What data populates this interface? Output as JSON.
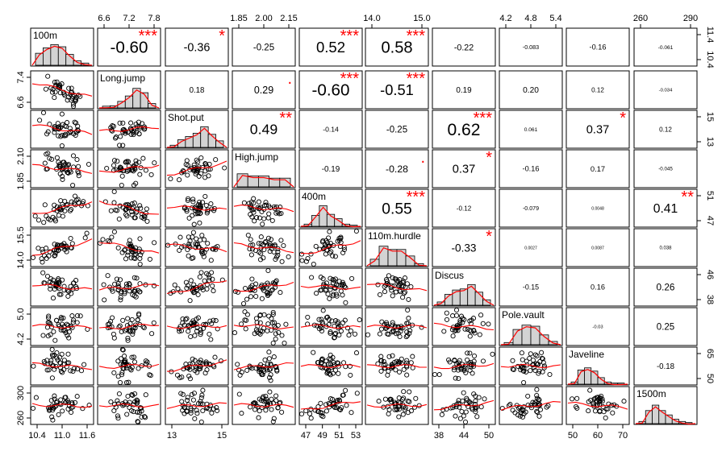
{
  "chart_data": {
    "type": "scatter-matrix-correlation",
    "variables": [
      "100m",
      "Long.jump",
      "Shot.put",
      "High.jump",
      "400m",
      "110m.hurdle",
      "Discus",
      "Pole.vault",
      "Javeline",
      "1500m"
    ],
    "ranges": [
      [
        10.4,
        11.7
      ],
      [
        6.5,
        8.0
      ],
      [
        12.5,
        16.5
      ],
      [
        1.83,
        2.18
      ],
      [
        46.3,
        53.3
      ],
      [
        13.7,
        16.0
      ],
      [
        36,
        53
      ],
      [
        4.1,
        5.6
      ],
      [
        48,
        72
      ],
      [
        255,
        320
      ]
    ],
    "ticks_top": {
      "1": [
        "6.6",
        "7.2",
        "7.8"
      ],
      "3": [
        "1.85",
        "2.00",
        "2.15"
      ],
      "5": [
        "14.0",
        "15.0"
      ],
      "7": [
        "4.2",
        "4.8",
        "5.4"
      ],
      "9": [
        "260",
        "290"
      ]
    },
    "ticks_bottom": {
      "0": [
        "10.4",
        "11.0",
        "11.6"
      ],
      "2": [
        "13",
        "15"
      ],
      "4": [
        "47",
        "49",
        "51",
        "53"
      ],
      "6": [
        "38",
        "44",
        "50"
      ],
      "8": [
        "50",
        "60",
        "70"
      ]
    },
    "ticks_left": {
      "1": [
        "6.6",
        "7.4"
      ],
      "3": [
        "1.85",
        "2.10"
      ],
      "5": [
        "14.0",
        "15.5"
      ],
      "7": [
        "4.2",
        "5.0"
      ],
      "9": [
        "260",
        "300"
      ]
    },
    "ticks_right": {
      "0": [
        "10.4",
        "11.4"
      ],
      "2": [
        "13",
        "15"
      ],
      "4": [
        "47",
        "51"
      ],
      "6": [
        "38",
        "46"
      ],
      "8": [
        "50",
        "65"
      ]
    },
    "correlations": [
      {
        "row": 0,
        "col": 1,
        "value": "-0.60",
        "stars": "***"
      },
      {
        "row": 0,
        "col": 2,
        "value": "-0.36",
        "stars": "*"
      },
      {
        "row": 0,
        "col": 3,
        "value": "-0.25",
        "stars": ""
      },
      {
        "row": 0,
        "col": 4,
        "value": "0.52",
        "stars": "***"
      },
      {
        "row": 0,
        "col": 5,
        "value": "0.58",
        "stars": "***"
      },
      {
        "row": 0,
        "col": 6,
        "value": "-0.22",
        "stars": ""
      },
      {
        "row": 0,
        "col": 7,
        "value": "-0.083",
        "stars": ""
      },
      {
        "row": 0,
        "col": 8,
        "value": "-0.16",
        "stars": ""
      },
      {
        "row": 0,
        "col": 9,
        "value": "-0.061",
        "stars": ""
      },
      {
        "row": 1,
        "col": 2,
        "value": "0.18",
        "stars": ""
      },
      {
        "row": 1,
        "col": 3,
        "value": "0.29",
        "stars": "."
      },
      {
        "row": 1,
        "col": 4,
        "value": "-0.60",
        "stars": "***"
      },
      {
        "row": 1,
        "col": 5,
        "value": "-0.51",
        "stars": "***"
      },
      {
        "row": 1,
        "col": 6,
        "value": "0.19",
        "stars": ""
      },
      {
        "row": 1,
        "col": 7,
        "value": "0.20",
        "stars": ""
      },
      {
        "row": 1,
        "col": 8,
        "value": "0.12",
        "stars": ""
      },
      {
        "row": 1,
        "col": 9,
        "value": "-0.034",
        "stars": ""
      },
      {
        "row": 2,
        "col": 3,
        "value": "0.49",
        "stars": "**"
      },
      {
        "row": 2,
        "col": 4,
        "value": "-0.14",
        "stars": ""
      },
      {
        "row": 2,
        "col": 5,
        "value": "-0.25",
        "stars": ""
      },
      {
        "row": 2,
        "col": 6,
        "value": "0.62",
        "stars": "***"
      },
      {
        "row": 2,
        "col": 7,
        "value": "0.061",
        "stars": ""
      },
      {
        "row": 2,
        "col": 8,
        "value": "0.37",
        "stars": "*"
      },
      {
        "row": 2,
        "col": 9,
        "value": "0.12",
        "stars": ""
      },
      {
        "row": 3,
        "col": 4,
        "value": "-0.19",
        "stars": ""
      },
      {
        "row": 3,
        "col": 5,
        "value": "-0.28",
        "stars": "."
      },
      {
        "row": 3,
        "col": 6,
        "value": "0.37",
        "stars": "*"
      },
      {
        "row": 3,
        "col": 7,
        "value": "-0.16",
        "stars": ""
      },
      {
        "row": 3,
        "col": 8,
        "value": "0.17",
        "stars": ""
      },
      {
        "row": 3,
        "col": 9,
        "value": "-0.045",
        "stars": ""
      },
      {
        "row": 4,
        "col": 5,
        "value": "0.55",
        "stars": "***"
      },
      {
        "row": 4,
        "col": 6,
        "value": "-0.12",
        "stars": ""
      },
      {
        "row": 4,
        "col": 7,
        "value": "-0.079",
        "stars": ""
      },
      {
        "row": 4,
        "col": 8,
        "value": "0.0048",
        "stars": ""
      },
      {
        "row": 4,
        "col": 9,
        "value": "0.41",
        "stars": "**"
      },
      {
        "row": 5,
        "col": 6,
        "value": "-0.33",
        "stars": "*"
      },
      {
        "row": 5,
        "col": 7,
        "value": "0.0027",
        "stars": ""
      },
      {
        "row": 5,
        "col": 8,
        "value": "0.0087",
        "stars": ""
      },
      {
        "row": 5,
        "col": 9,
        "value": "0.038",
        "stars": ""
      },
      {
        "row": 6,
        "col": 7,
        "value": "-0.15",
        "stars": ""
      },
      {
        "row": 6,
        "col": 8,
        "value": "0.16",
        "stars": ""
      },
      {
        "row": 6,
        "col": 9,
        "value": "0.26",
        "stars": ""
      },
      {
        "row": 7,
        "col": 8,
        "value": "-0.03",
        "stars": ""
      },
      {
        "row": 7,
        "col": 9,
        "value": "0.25",
        "stars": ""
      },
      {
        "row": 8,
        "col": 9,
        "value": "-0.18",
        "stars": ""
      }
    ],
    "histograms": [
      [
        0.55,
        0.8,
        0.95,
        0.85,
        0.5,
        0.2,
        0.1
      ],
      [
        0.08,
        0.1,
        0.3,
        0.55,
        0.9,
        0.7,
        0.2
      ],
      [
        0.1,
        0.35,
        0.5,
        0.65,
        0.95,
        0.6,
        0.3
      ],
      [
        0.6,
        0.5,
        0.5,
        0.4,
        0.4
      ],
      [
        0.1,
        0.5,
        0.95,
        0.55,
        0.35,
        0.1,
        0.05
      ],
      [
        0.3,
        0.9,
        0.75,
        0.75,
        0.45,
        0.1
      ],
      [
        0.15,
        0.5,
        0.7,
        0.75,
        0.95,
        0.6,
        0.25
      ],
      [
        0.1,
        0.7,
        0.9,
        0.85,
        0.45,
        0.15
      ],
      [
        0.1,
        0.65,
        0.75,
        0.6,
        0.3,
        0.1,
        0.05,
        0.05
      ],
      [
        0.1,
        0.6,
        0.85,
        0.6,
        0.4,
        0.2,
        0.1,
        0.05
      ]
    ],
    "colors": {
      "stars": "#ff0000",
      "smooth": "#ff0000",
      "bar_fill": "#d3d3d3",
      "panel_border": "#000000"
    },
    "points_per_panel": 41
  }
}
